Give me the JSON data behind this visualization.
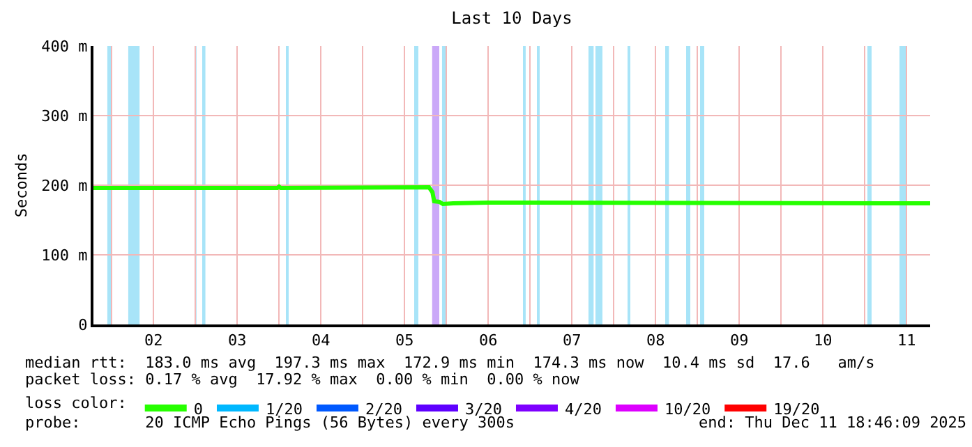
{
  "chart_data": {
    "type": "line",
    "title": "Last 10 Days",
    "ylabel": "Seconds",
    "x": [
      "2025-12-01T18:46",
      "2025-12-03T23:30",
      "2025-12-04T00:00",
      "2025-12-04T00:30",
      "2025-12-05T19:00",
      "2025-12-05T20:00",
      "2025-12-05T20:30",
      "2025-12-05T22:00",
      "2025-12-05T23:00",
      "2025-12-06T02:00",
      "2025-12-06T12:00",
      "2025-12-11T18:46"
    ],
    "series": [
      {
        "name": "0",
        "color": "#26ff00",
        "values": [
          196,
          196,
          198,
          196,
          197,
          190,
          177,
          176,
          173,
          174,
          175,
          174
        ]
      },
      {
        "name": "1/20",
        "color": "#00b8ff",
        "values": [
          null,
          null,
          null,
          null,
          null,
          null,
          null,
          null,
          null,
          null,
          null,
          null
        ]
      },
      {
        "name": "2/20",
        "color": "#0059ff",
        "values": [
          null,
          null,
          null,
          null,
          null,
          null,
          null,
          null,
          null,
          null,
          null,
          null
        ]
      },
      {
        "name": "3/20",
        "color": "#5e00ff",
        "values": [
          null,
          null,
          null,
          null,
          null,
          null,
          null,
          null,
          null,
          null,
          null,
          null
        ]
      },
      {
        "name": "4/20",
        "color": "#7e00ff",
        "values": [
          null,
          null,
          null,
          null,
          null,
          null,
          null,
          null,
          null,
          null,
          null,
          null
        ]
      },
      {
        "name": "10/20",
        "color": "#dd00ff",
        "values": [
          null,
          null,
          null,
          null,
          null,
          null,
          null,
          null,
          null,
          null,
          null,
          null
        ]
      },
      {
        "name": "19/20",
        "color": "#ff0000",
        "values": [
          null,
          null,
          null,
          null,
          null,
          null,
          null,
          null,
          null,
          null,
          null,
          null
        ]
      }
    ],
    "legend": "bottom",
    "legend_title": "loss color:",
    "xlim": [
      "2025-12-01T18:46",
      "2025-12-11T18:46"
    ],
    "xticks": [
      {
        "value": "2025-12-02",
        "label": null
      },
      {
        "value": "2025-12-02T12:00",
        "label": "02"
      },
      {
        "value": "2025-12-03",
        "label": null
      },
      {
        "value": "2025-12-03T12:00",
        "label": "03"
      },
      {
        "value": "2025-12-04",
        "label": null
      },
      {
        "value": "2025-12-04T12:00",
        "label": "04"
      },
      {
        "value": "2025-12-05",
        "label": null
      },
      {
        "value": "2025-12-05T12:00",
        "label": "05"
      },
      {
        "value": "2025-12-06",
        "label": null
      },
      {
        "value": "2025-12-06T12:00",
        "label": "06"
      },
      {
        "value": "2025-12-07",
        "label": null
      },
      {
        "value": "2025-12-07T12:00",
        "label": "07"
      },
      {
        "value": "2025-12-08",
        "label": null
      },
      {
        "value": "2025-12-08T12:00",
        "label": "08"
      },
      {
        "value": "2025-12-09",
        "label": null
      },
      {
        "value": "2025-12-09T12:00",
        "label": "09"
      },
      {
        "value": "2025-12-10",
        "label": null
      },
      {
        "value": "2025-12-10T12:00",
        "label": "10"
      },
      {
        "value": "2025-12-11",
        "label": null
      },
      {
        "value": "2025-12-11T12:00",
        "label": "11"
      }
    ],
    "ylim": [
      0,
      400
    ],
    "yticks": [
      0,
      {
        "value": 100,
        "label": "100 m"
      },
      {
        "value": 200,
        "label": "200 m"
      },
      {
        "value": 300,
        "label": "300 m"
      },
      {
        "value": 400,
        "label": "400 m"
      }
    ],
    "grid": true,
    "bands": [
      {
        "axis": "x",
        "from": "2025-12-01T22:45",
        "to": "2025-12-02T00:10",
        "color": "#a8e4f8"
      },
      {
        "axis": "x",
        "from": "2025-12-02T04:45",
        "to": "2025-12-02T08:00",
        "color": "#a8e4f8"
      },
      {
        "axis": "x",
        "from": "2025-12-02T23:55",
        "to": "2025-12-03T00:20",
        "color": "#a8e4f8"
      },
      {
        "axis": "x",
        "from": "2025-12-03T01:58",
        "to": "2025-12-03T02:53",
        "color": "#a8e4f8"
      },
      {
        "axis": "x",
        "from": "2025-12-04T01:58",
        "to": "2025-12-04T02:46",
        "color": "#a8e4f8"
      },
      {
        "axis": "x",
        "from": "2025-12-05T14:46",
        "to": "2025-12-05T15:58",
        "color": "#a8e4f8"
      },
      {
        "axis": "x",
        "from": "2025-12-05T19:55",
        "to": "2025-12-05T21:58",
        "color": "#caa8f8"
      },
      {
        "axis": "x",
        "from": "2025-12-05T22:45",
        "to": "2025-12-05T23:57",
        "color": "#a8e4f8"
      },
      {
        "axis": "x",
        "from": "2025-12-06T21:58",
        "to": "2025-12-06T22:45",
        "color": "#a8e4f8"
      },
      {
        "axis": "x",
        "from": "2025-12-07T01:58",
        "to": "2025-12-07T02:46",
        "color": "#a8e4f8"
      },
      {
        "axis": "x",
        "from": "2025-12-07T16:46",
        "to": "2025-12-07T18:14",
        "color": "#a8e4f8"
      },
      {
        "axis": "x",
        "from": "2025-12-07T18:46",
        "to": "2025-12-07T20:46",
        "color": "#a8e4f8"
      },
      {
        "axis": "x",
        "from": "2025-12-08T03:58",
        "to": "2025-12-08T04:46",
        "color": "#a8e4f8"
      },
      {
        "axis": "x",
        "from": "2025-12-08T14:46",
        "to": "2025-12-08T15:50",
        "color": "#a8e4f8"
      },
      {
        "axis": "x",
        "from": "2025-12-08T20:46",
        "to": "2025-12-08T21:58",
        "color": "#a8e4f8"
      },
      {
        "axis": "x",
        "from": "2025-12-09T00:46",
        "to": "2025-12-09T01:58",
        "color": "#a8e4f8"
      },
      {
        "axis": "x",
        "from": "2025-12-11T00:46",
        "to": "2025-12-11T01:58",
        "color": "#a8e4f8"
      },
      {
        "axis": "x",
        "from": "2025-12-11T09:58",
        "to": "2025-12-11T12:02",
        "color": "#a8e4f8"
      }
    ],
    "annotations": [
      "median rtt:  183.0 ms avg  197.3 ms max  172.9 ms min  174.3 ms now  10.4 ms sd  17.6   am/s",
      "packet loss: 0.17 % avg  17.92 % max  0.00 % min  0.00 % now",
      "probe:       20 ICMP Echo Pings (56 Bytes) every 300s",
      "end: Thu Dec 11 18:46:09 2025"
    ]
  }
}
